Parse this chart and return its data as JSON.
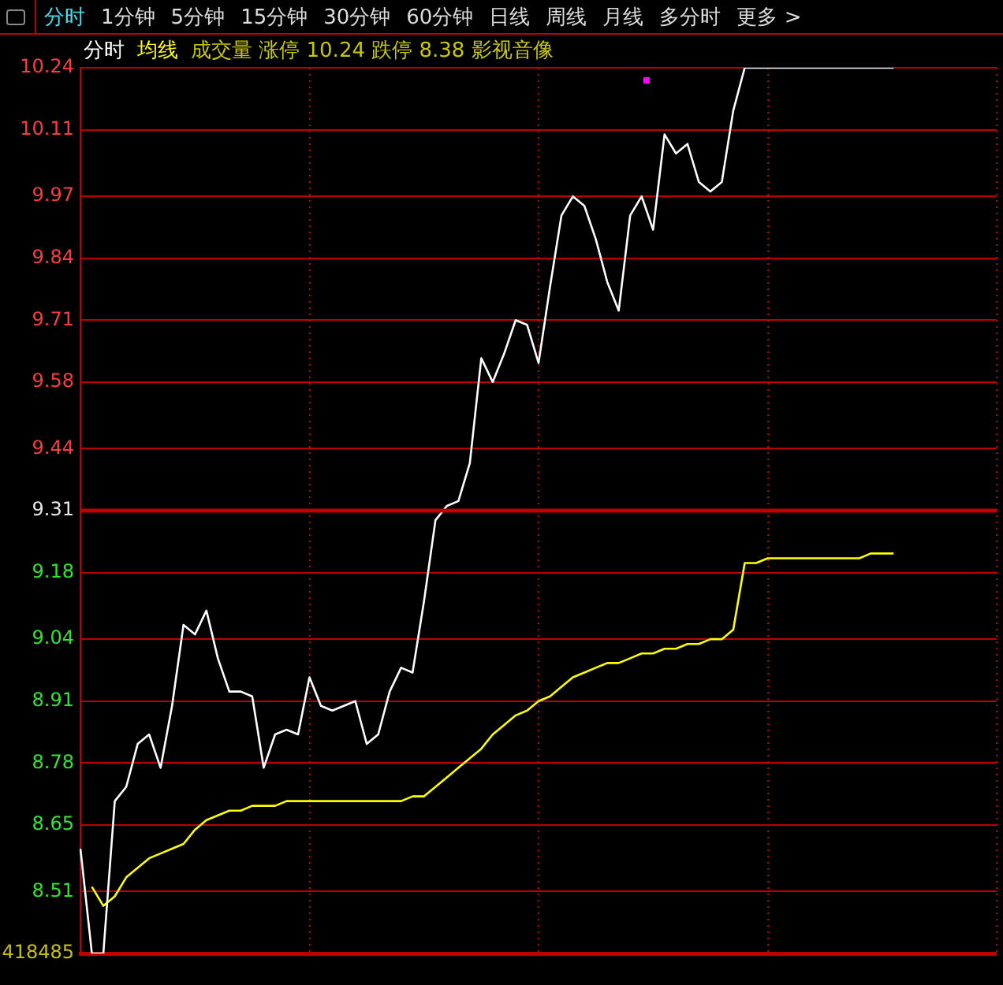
{
  "chart_data": {
    "type": "line",
    "subtitle": "成交量  涨停 10.24  跌停 8.38  影视音像",
    "annotations": [
      "分时",
      "1分钟",
      "5分钟",
      "15分钟",
      "30分钟",
      "60分钟",
      "日线",
      "周线",
      "月线",
      "多分时",
      "更多 >",
      "418485"
    ],
    "categories": [
      null,
      null,
      null,
      null,
      null,
      null,
      null,
      null,
      null,
      null,
      null,
      null,
      null,
      null,
      null,
      null,
      null,
      null,
      null,
      null,
      null,
      null,
      null,
      null,
      null,
      null,
      null,
      null,
      null,
      null,
      null,
      null,
      null,
      null,
      null,
      null,
      null,
      null,
      null,
      null,
      null,
      null,
      null,
      null,
      null,
      null,
      null,
      null,
      null,
      null,
      null,
      null,
      null,
      null,
      null,
      null,
      null,
      null,
      null,
      null,
      null,
      null,
      null,
      null,
      null,
      null,
      null,
      null,
      null,
      null,
      null,
      null,
      null,
      null,
      null,
      null,
      null,
      null,
      null,
      null,
      null
    ],
    "series": [
      {
        "name": "分时",
        "color": "#ffffff",
        "values": [
          8.6,
          8.38,
          8.38,
          8.7,
          8.73,
          8.82,
          8.84,
          8.77,
          8.9,
          9.07,
          9.05,
          9.1,
          9.0,
          8.93,
          8.93,
          8.92,
          8.77,
          8.84,
          8.85,
          8.84,
          8.96,
          8.9,
          8.89,
          8.9,
          8.91,
          8.82,
          8.84,
          8.93,
          8.98,
          8.97,
          9.12,
          9.29,
          9.32,
          9.33,
          9.41,
          9.63,
          9.58,
          9.64,
          9.71,
          9.7,
          9.62,
          9.78,
          9.93,
          9.97,
          9.95,
          9.88,
          9.79,
          9.73,
          9.93,
          9.97,
          9.9,
          10.1,
          10.06,
          10.08,
          10.0,
          9.98,
          10.0,
          10.15,
          10.24,
          10.24,
          10.24,
          10.24,
          10.24,
          10.24,
          10.24,
          10.24,
          10.24,
          10.24,
          10.24,
          10.24,
          10.24,
          10.24,
          null,
          null,
          null,
          null,
          null,
          null,
          null,
          null,
          null
        ]
      },
      {
        "name": "均线",
        "color": "#ffff00",
        "values": [
          null,
          8.52,
          8.48,
          8.5,
          8.54,
          8.56,
          8.58,
          8.59,
          8.6,
          8.61,
          8.64,
          8.66,
          8.67,
          8.68,
          8.68,
          8.69,
          8.69,
          8.69,
          8.7,
          8.7,
          8.7,
          8.7,
          8.7,
          8.7,
          8.7,
          8.7,
          8.7,
          8.7,
          8.7,
          8.71,
          8.71,
          8.73,
          8.75,
          8.77,
          8.79,
          8.81,
          8.84,
          8.86,
          8.88,
          8.89,
          8.91,
          8.92,
          8.94,
          8.96,
          8.97,
          8.98,
          8.99,
          8.99,
          9.0,
          9.01,
          9.01,
          9.02,
          9.02,
          9.03,
          9.03,
          9.04,
          9.04,
          9.06,
          9.2,
          9.2,
          9.21,
          9.21,
          9.21,
          9.21,
          9.21,
          9.21,
          9.21,
          9.21,
          9.21,
          9.22,
          9.22,
          9.22,
          null,
          null,
          null,
          null,
          null,
          null,
          null,
          null,
          null
        ]
      }
    ],
    "ylim": [
      8.38,
      10.24
    ],
    "yticks": [
      {
        "value": 8.38,
        "label": null
      },
      8.51,
      8.65,
      8.78,
      8.91,
      9.04,
      9.18,
      9.31,
      9.44,
      9.58,
      9.71,
      9.84,
      9.97,
      10.11,
      10.24
    ],
    "tick_labels": "y",
    "grid": true,
    "legend": "top left",
    "marker": "none",
    "line_style": "solid",
    "ref_lines": [
      {
        "axis": "y",
        "value": 9.31,
        "color": "#c00000"
      }
    ]
  }
}
